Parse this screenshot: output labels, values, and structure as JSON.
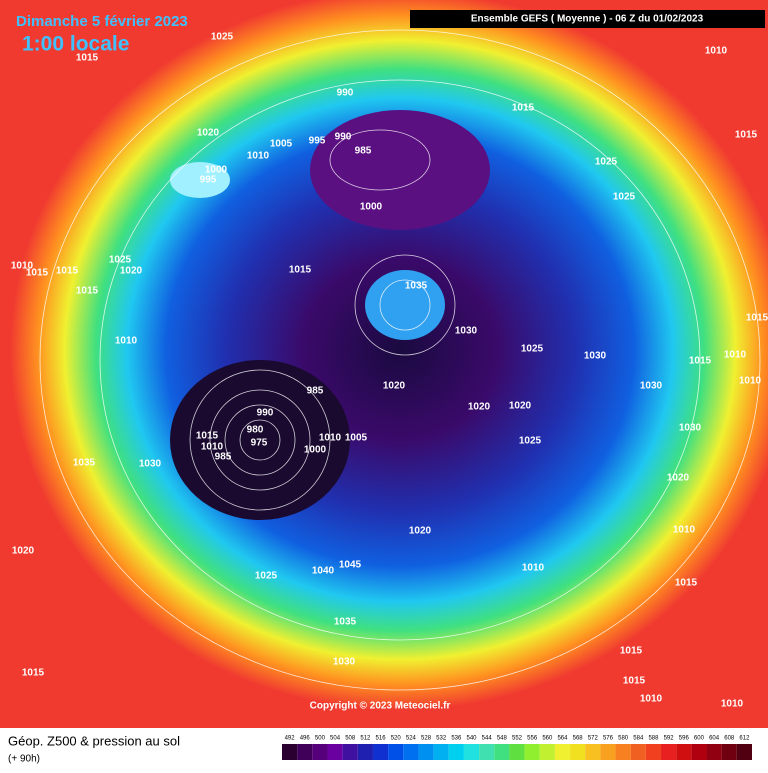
{
  "header": {
    "title": "Dimanche 5 février 2023",
    "time": "1:00 locale",
    "model": "Ensemble GEFS  ( Moyenne )  -  06 Z du 01/02/2023"
  },
  "labels": [
    1025,
    1015,
    1010,
    990,
    1015,
    1015,
    1020,
    1005,
    995,
    990,
    985,
    1010,
    1000,
    995,
    1025,
    1025,
    1000,
    1010,
    1015,
    1015,
    1025,
    1020,
    1015,
    1035,
    1015,
    1015,
    1030,
    1010,
    1025,
    1030,
    1015,
    1010,
    1010,
    1020,
    985,
    1030,
    990,
    1020,
    1020,
    980,
    1015,
    1010,
    975,
    1010,
    1005,
    1030,
    1025,
    1000,
    985,
    1035,
    1030,
    1020,
    1020,
    1010,
    1020,
    1010,
    1045,
    1040,
    1025,
    1015,
    1035,
    1015,
    1030,
    1015,
    1015,
    1010,
    1010
  ],
  "footer": {
    "title": "Géop. Z500 & pression au sol",
    "lead": "(+ 90h)",
    "copyright": "Copyright © 2023 Meteociel.fr"
  },
  "scale": {
    "labels": [
      492,
      496,
      500,
      504,
      508,
      512,
      516,
      520,
      524,
      528,
      532,
      536,
      540,
      544,
      548,
      552,
      556,
      560,
      564,
      568,
      572,
      576,
      580,
      584,
      588,
      592,
      596,
      600,
      604,
      608,
      612
    ]
  }
}
